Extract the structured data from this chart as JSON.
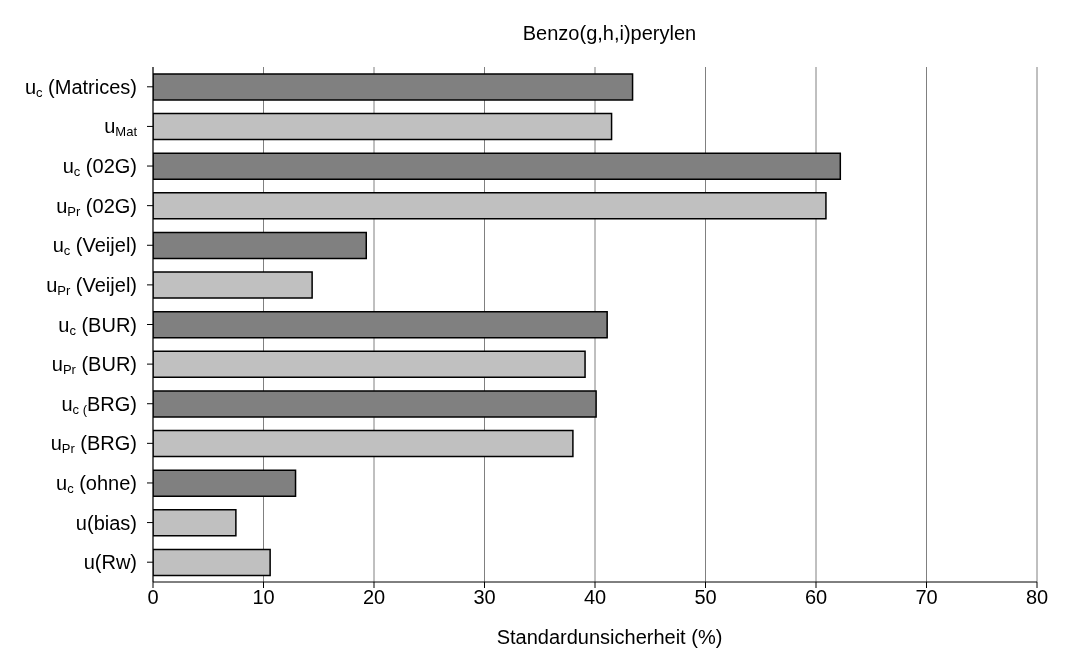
{
  "chart_data": {
    "type": "bar",
    "orientation": "horizontal",
    "title": "Benzo(g,h,i)perylen",
    "xlabel": "Standardunsicherheit (%)",
    "categories": [
      "u$_{c}$ (Matrices)",
      "u$_{Mat}$",
      "u$_{c}$ (02G)",
      "u$_{Pr}$ (02G)",
      "u$_{c}$ (Veijel)",
      "u$_{Pr}$ (Veijel)",
      "u$_{c}$ (BUR)",
      "u$_{Pr}$ (BUR)",
      "u$_{c (}$BRG)",
      "u$_{Pr}$ (BRG)",
      "u$_{c}$ (ohne)",
      "u(bias)",
      "u(Rw)"
    ],
    "values": [
      43.4,
      41.5,
      62.2,
      60.9,
      19.3,
      14.4,
      41.1,
      39.1,
      40.1,
      38.0,
      12.9,
      7.5,
      10.6
    ],
    "colors": [
      "#808080",
      "#c0c0c0",
      "#808080",
      "#c0c0c0",
      "#808080",
      "#c0c0c0",
      "#808080",
      "#c0c0c0",
      "#808080",
      "#c0c0c0",
      "#808080",
      "#c0c0c0",
      "#c0c0c0"
    ],
    "xlim": [
      0,
      80
    ],
    "xticks": [
      0,
      10,
      20,
      30,
      40,
      50,
      60,
      70,
      80
    ],
    "grid": "x",
    "legend": false
  }
}
